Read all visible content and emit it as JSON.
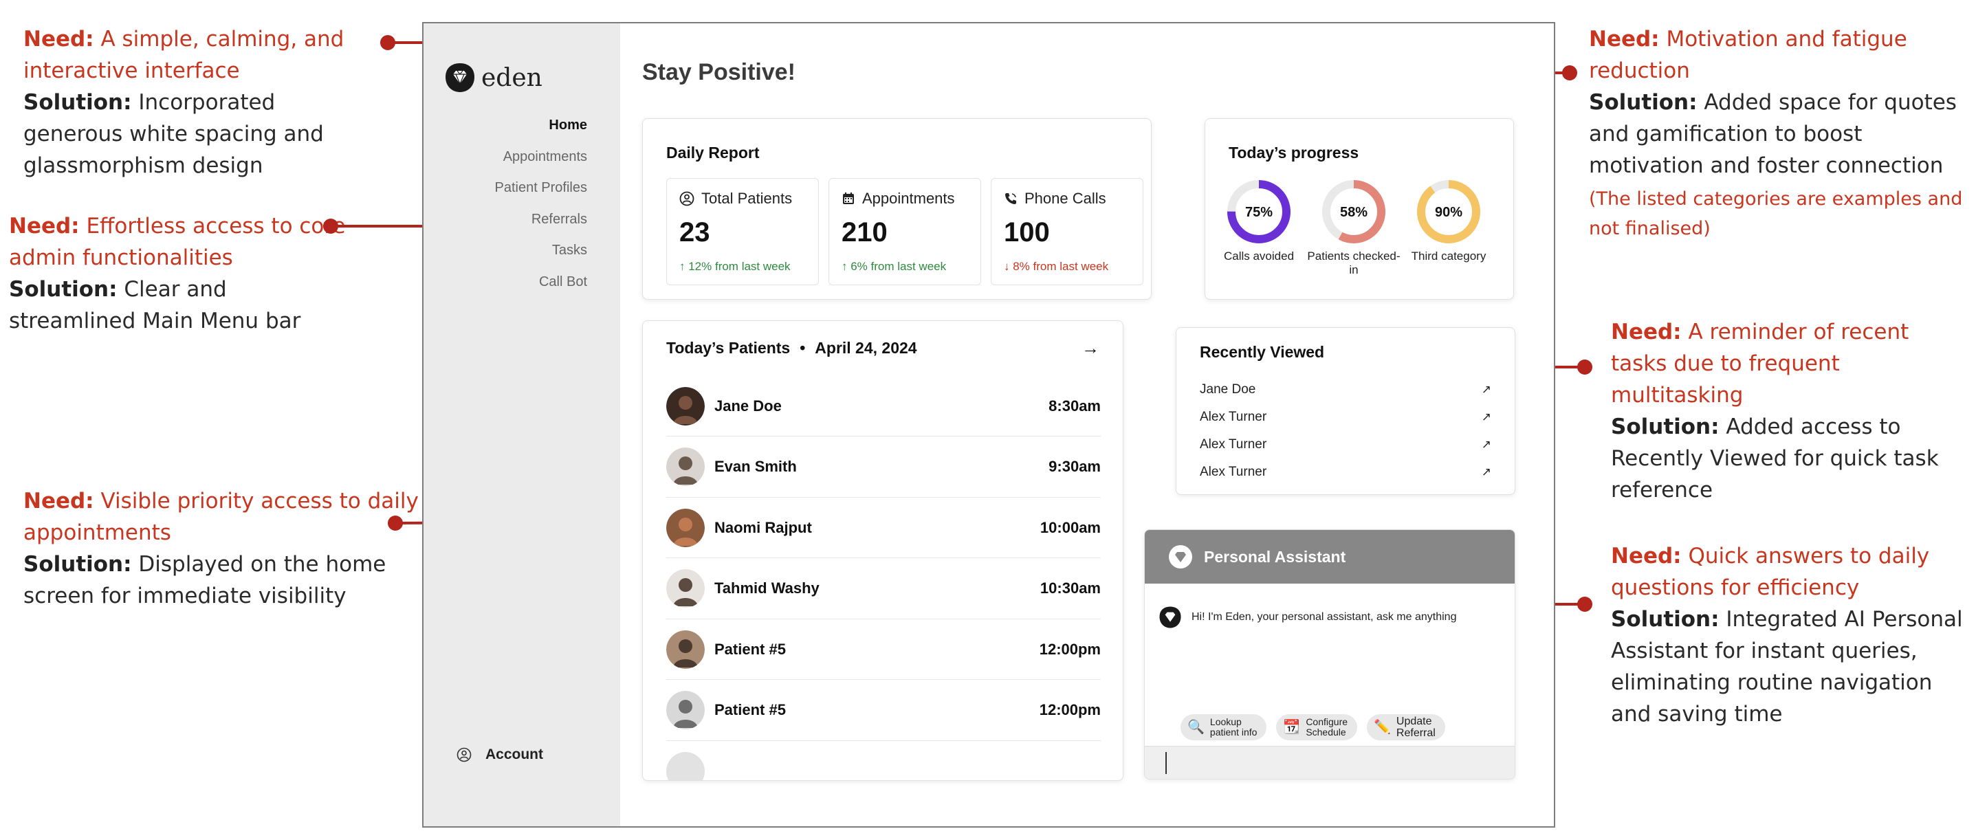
{
  "annotations": [
    {
      "id": "interface",
      "need_label": "Need:",
      "need": "A simple, calming, and interactive interface",
      "solution_label": "Solution:",
      "solution": "Incorporated generous white spacing and glassmorphism design"
    },
    {
      "id": "access",
      "need_label": "Need:",
      "need": "Effortless access to core admin functionalities",
      "solution_label": "Solution:",
      "solution": "Clear and streamlined Main Menu bar"
    },
    {
      "id": "appointments",
      "need_label": "Need:",
      "need": "Visible priority access to daily appointments",
      "solution_label": "Solution:",
      "solution": "Displayed on the home screen for immediate visibility"
    },
    {
      "id": "motivation",
      "need_label": "Need:",
      "need": "Motivation and fatigue reduction",
      "solution_label": "Solution:",
      "solution": "Added space for quotes and gamification to boost motivation and foster connection",
      "note": "(The listed categories are examples and not finalised)"
    },
    {
      "id": "reminder",
      "need_label": "Need:",
      "need": "A reminder of recent tasks due to frequent multitasking",
      "solution_label": "Solution:",
      "solution": "Added access to Recently Viewed for quick task reference"
    },
    {
      "id": "answers",
      "need_label": "Need:",
      "need": "Quick answers to daily questions for efficiency",
      "solution_label": "Solution:",
      "solution": "Integrated AI Personal Assistant for instant queries, eliminating routine navigation and saving time"
    }
  ],
  "app": {
    "logo_text": "eden",
    "logo_icon": "shield-gem-icon",
    "nav": [
      "Home",
      "Appointments",
      "Patient Profiles",
      "Referrals",
      "Tasks",
      "Call Bot"
    ],
    "account_label": "Account",
    "greeting": "Stay Positive!",
    "daily_report": {
      "title": "Daily Report",
      "stats": [
        {
          "label": "Total Patients",
          "value": "23",
          "change": "↑ 12% from last week",
          "trend": "up",
          "icon": "user-circle-icon"
        },
        {
          "label": "Appointments",
          "value": "210",
          "change": "↑ 6% from last week",
          "trend": "up",
          "icon": "calendar-icon"
        },
        {
          "label": "Phone Calls",
          "value": "100",
          "change": "↓ 8% from last week",
          "trend": "down",
          "icon": "phone-icon"
        }
      ]
    },
    "progress": {
      "title": "Today’s progress",
      "rings": [
        {
          "value": 75,
          "text": "75%",
          "label": "Calls avoided",
          "color": "#6b2fd6"
        },
        {
          "value": 58,
          "text": "58%",
          "label": "Patients checked-in",
          "color": "#e2867a"
        },
        {
          "value": 90,
          "text": "90%",
          "label": "Third category",
          "color": "#f5c565"
        }
      ]
    },
    "patients": {
      "title": "Today’s Patients",
      "separator": "•",
      "date": "April 24, 2024",
      "rows": [
        {
          "name": "Jane Doe",
          "time": "8:30am"
        },
        {
          "name": "Evan Smith",
          "time": "9:30am"
        },
        {
          "name": "Naomi Rajput",
          "time": "10:00am"
        },
        {
          "name": "Tahmid Washy",
          "time": "10:30am"
        },
        {
          "name": "Patient #5",
          "time": "12:00pm"
        },
        {
          "name": "Patient #5",
          "time": "12:00pm"
        }
      ]
    },
    "recent": {
      "title": "Recently Viewed",
      "items": [
        "Jane Doe",
        "Alex Turner",
        "Alex Turner",
        "Alex Turner"
      ]
    },
    "assistant": {
      "title": "Personal Assistant",
      "message": "Hi! I'm Eden, your personal assistant, ask me anything",
      "chips": [
        {
          "line1": "Lookup",
          "line2": "patient info",
          "icon": "magnifier-icon"
        },
        {
          "line1": "Configure",
          "line2": "Schedule",
          "icon": "calendar-icon"
        },
        {
          "line1": "Update",
          "line2": "Referral",
          "icon": "pencil-icon"
        }
      ]
    }
  }
}
